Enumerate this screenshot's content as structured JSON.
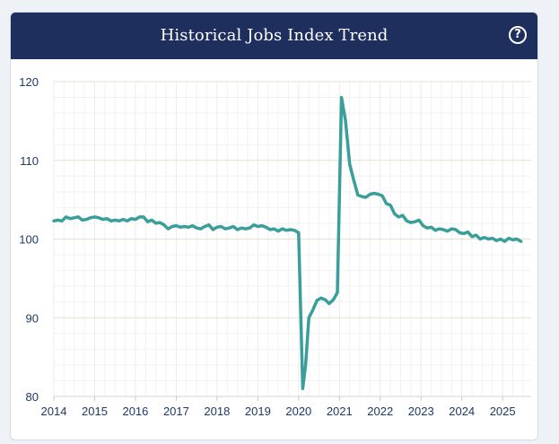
{
  "header": {
    "title": "Historical Jobs Index Trend",
    "help_icon": "question-circle-icon",
    "help_symbol": "?"
  },
  "colors": {
    "header_bg": "#1e2f5e",
    "line": "#3a9e9a",
    "grid_major": "#e6e1cf",
    "grid_minor": "#f2f2f2",
    "axis_text": "#1e3866"
  },
  "chart_data": {
    "type": "line",
    "title": "Historical Jobs Index Trend",
    "xlabel": "",
    "ylabel": "",
    "xlim": [
      2014.0,
      2025.7
    ],
    "ylim": [
      80,
      120
    ],
    "x_ticks": [
      2014,
      2015,
      2016,
      2017,
      2018,
      2019,
      2020,
      2021,
      2022,
      2023,
      2024,
      2025
    ],
    "x_tick_labels": [
      "2014",
      "2015",
      "2016",
      "2017",
      "2018",
      "2019",
      "2020",
      "2021",
      "2022",
      "2023",
      "2024",
      "2025"
    ],
    "y_ticks": [
      80,
      90,
      100,
      110,
      120
    ],
    "y_tick_labels": [
      "80",
      "90",
      "100",
      "110",
      "120"
    ],
    "grid": true,
    "legend": "none",
    "series": [
      {
        "x": [
          2014.0,
          2014.1,
          2014.2,
          2014.3,
          2014.4,
          2014.5,
          2014.6,
          2014.7,
          2014.8,
          2014.9,
          2015.0,
          2015.1,
          2015.2,
          2015.3,
          2015.4,
          2015.5,
          2015.6,
          2015.7,
          2015.8,
          2015.9,
          2016.0,
          2016.1,
          2016.2,
          2016.3,
          2016.4,
          2016.5,
          2016.6,
          2016.7,
          2016.8,
          2016.9,
          2017.0,
          2017.1,
          2017.2,
          2017.3,
          2017.4,
          2017.5,
          2017.6,
          2017.7,
          2017.8,
          2017.9,
          2018.0,
          2018.1,
          2018.2,
          2018.3,
          2018.4,
          2018.5,
          2018.6,
          2018.7,
          2018.8,
          2018.9,
          2019.0,
          2019.1,
          2019.2,
          2019.3,
          2019.4,
          2019.5,
          2019.6,
          2019.7,
          2019.8,
          2019.9,
          2020.0,
          2020.1,
          2020.17,
          2020.25,
          2020.35,
          2020.45,
          2020.55,
          2020.65,
          2020.75,
          2020.85,
          2020.95,
          2021.05,
          2021.15,
          2021.25,
          2021.35,
          2021.45,
          2021.55,
          2021.65,
          2021.75,
          2021.85,
          2021.95,
          2022.05,
          2022.15,
          2022.25,
          2022.35,
          2022.45,
          2022.55,
          2022.65,
          2022.75,
          2022.85,
          2022.95,
          2023.05,
          2023.15,
          2023.25,
          2023.35,
          2023.45,
          2023.55,
          2023.65,
          2023.75,
          2023.85,
          2023.95,
          2024.05,
          2024.15,
          2024.25,
          2024.35,
          2024.45,
          2024.55,
          2024.65,
          2024.75,
          2024.85,
          2024.95,
          2025.05,
          2025.15,
          2025.25,
          2025.35,
          2025.45
        ],
        "y": [
          102.3,
          102.4,
          102.3,
          102.8,
          102.6,
          102.7,
          102.8,
          102.4,
          102.5,
          102.7,
          102.8,
          102.7,
          102.5,
          102.6,
          102.3,
          102.4,
          102.3,
          102.5,
          102.3,
          102.6,
          102.5,
          102.8,
          102.8,
          102.2,
          102.4,
          102.0,
          102.1,
          101.8,
          101.3,
          101.6,
          101.7,
          101.5,
          101.6,
          101.5,
          101.7,
          101.4,
          101.3,
          101.6,
          101.8,
          101.2,
          101.5,
          101.6,
          101.3,
          101.4,
          101.6,
          101.2,
          101.4,
          101.3,
          101.4,
          101.8,
          101.6,
          101.7,
          101.5,
          101.2,
          101.3,
          101.0,
          101.3,
          101.1,
          101.2,
          101.1,
          100.8,
          81.0,
          84.0,
          90.0,
          91.0,
          92.2,
          92.5,
          92.3,
          91.8,
          92.3,
          93.2,
          118.0,
          115.0,
          109.5,
          107.5,
          105.6,
          105.4,
          105.3,
          105.7,
          105.8,
          105.7,
          105.5,
          104.5,
          104.3,
          103.2,
          102.8,
          103.0,
          102.3,
          102.1,
          102.2,
          102.4,
          101.7,
          101.4,
          101.5,
          101.1,
          101.3,
          101.2,
          101.0,
          101.3,
          101.2,
          100.8,
          100.7,
          100.9,
          100.3,
          100.5,
          100.0,
          100.2,
          100.0,
          100.1,
          99.8,
          100.0,
          99.7,
          100.1,
          99.9,
          100.0,
          99.7
        ],
        "color": "#3a9e9a"
      }
    ]
  }
}
